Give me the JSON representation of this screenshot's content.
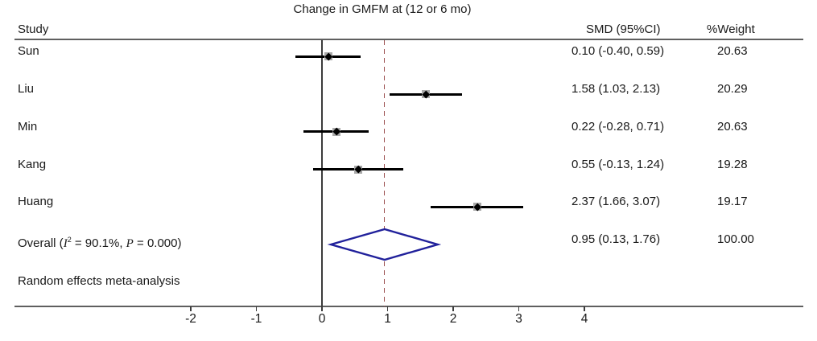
{
  "title": "Change in GMFM at (12 or 6 mo)",
  "columns": {
    "study": "Study",
    "smd": "SMD (95%CI)",
    "weight": "%Weight"
  },
  "chart_data": {
    "type": "forest",
    "title": "Change in GMFM at (12 or 6 mo)",
    "x_axis": {
      "ticks": [
        -2,
        -1,
        0,
        1,
        2,
        3,
        4
      ],
      "tick_labels": [
        "-2",
        "-1",
        "0",
        "1",
        "2",
        "3",
        "4"
      ],
      "range": [
        -2.7,
        4.7
      ]
    },
    "reference_line": 0,
    "overall_dashed_line": 0.95,
    "studies": [
      {
        "label": "Sun",
        "smd": 0.1,
        "lo": -0.4,
        "hi": 0.59,
        "smd_text": "0.10 (-0.40, 0.59)",
        "weight": 20.63,
        "weight_text": "20.63"
      },
      {
        "label": "Liu",
        "smd": 1.58,
        "lo": 1.03,
        "hi": 2.13,
        "smd_text": "1.58 (1.03, 2.13)",
        "weight": 20.29,
        "weight_text": "20.29"
      },
      {
        "label": "Min",
        "smd": 0.22,
        "lo": -0.28,
        "hi": 0.71,
        "smd_text": "0.22 (-0.28, 0.71)",
        "weight": 20.63,
        "weight_text": "20.63"
      },
      {
        "label": "Kang",
        "smd": 0.55,
        "lo": -0.13,
        "hi": 1.24,
        "smd_text": "0.55 (-0.13, 1.24)",
        "weight": 19.28,
        "weight_text": "19.28"
      },
      {
        "label": "Huang",
        "smd": 2.37,
        "lo": 1.66,
        "hi": 3.07,
        "smd_text": "2.37 (1.66, 3.07)",
        "weight": 19.17,
        "weight_text": "19.17"
      }
    ],
    "overall": {
      "label_prefix": "Overall (",
      "i_symbol": "I",
      "i_sup": "2",
      "label_mid": " = 90.1%, ",
      "p_symbol": "P",
      "label_suffix": " = 0.000)",
      "smd": 0.95,
      "lo": 0.13,
      "hi": 1.76,
      "smd_text": "0.95 (0.13, 1.76)",
      "weight_text": "100.00"
    },
    "note": "Random effects meta-analysis",
    "colors": {
      "diamond": "#21219b",
      "dashed_line": "#9d5252",
      "ci_line": "#000000",
      "marker_box": "#a9a9a9",
      "marker_dot": "#000000",
      "rule": "#5f5f5f"
    }
  }
}
